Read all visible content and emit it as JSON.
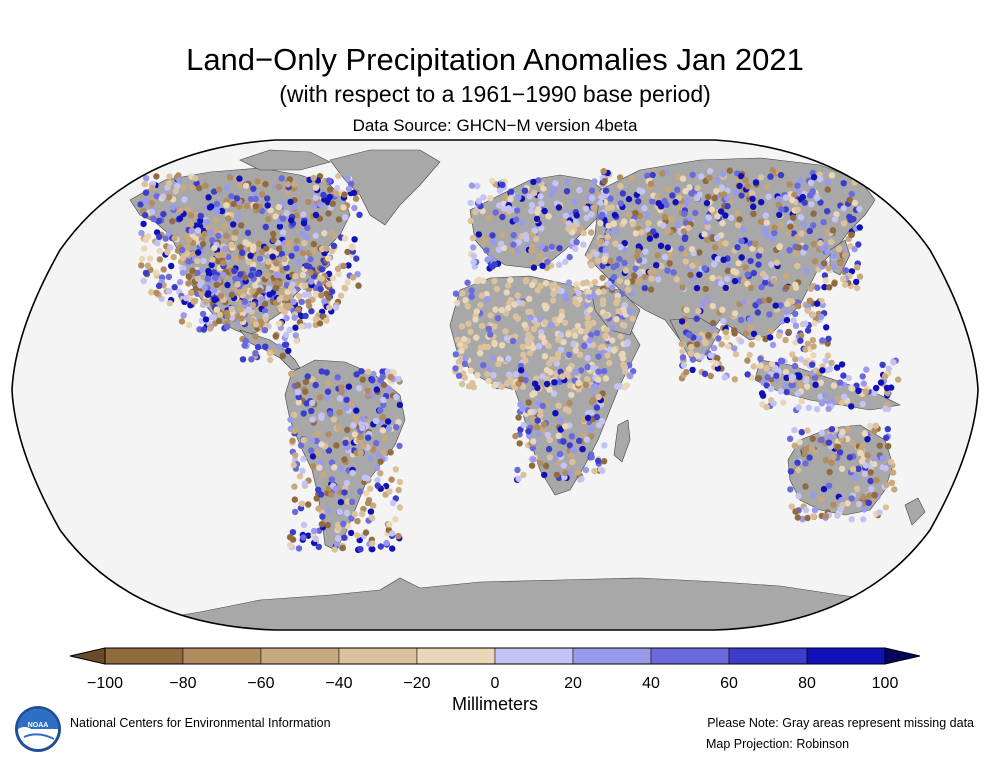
{
  "title": "Land−Only Precipitation Anomalies Jan 2021",
  "subtitle": "(with respect to a 1961−1990 base period)",
  "source": "Data Source: GHCN−M version 4beta",
  "colorbar": {
    "ticks": [
      "−100",
      "−80",
      "−60",
      "−40",
      "−20",
      "0",
      "20",
      "40",
      "60",
      "80",
      "100"
    ],
    "units": "Millimeters",
    "colors": [
      "#6b4c2a",
      "#8f6b3f",
      "#b08c5e",
      "#c8a97e",
      "#dbc29c",
      "#ead7b8",
      "#c4c4f4",
      "#9a9aea",
      "#6a6adc",
      "#3d3dcc",
      "#1010b8",
      "#05055e"
    ]
  },
  "map": {
    "ocean_color": "#f4f4f4",
    "land_missing_color": "#a8a8a8",
    "projection": "Robinson"
  },
  "footer": {
    "org": "National Centers for Environmental Information",
    "note": "Please Note: Gray areas represent missing data",
    "projection_note": "Map Projection: Robinson",
    "logo_text": "NOAA"
  }
}
